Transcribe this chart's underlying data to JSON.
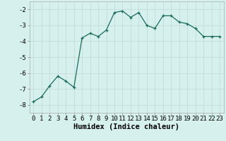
{
  "x": [
    0,
    1,
    2,
    3,
    4,
    5,
    6,
    7,
    8,
    9,
    10,
    11,
    12,
    13,
    14,
    15,
    16,
    17,
    18,
    19,
    20,
    21,
    22,
    23
  ],
  "y": [
    -7.8,
    -7.5,
    -6.8,
    -6.2,
    -6.5,
    -6.9,
    -3.8,
    -3.5,
    -3.7,
    -3.3,
    -2.2,
    -2.1,
    -2.5,
    -2.2,
    -3.0,
    -3.2,
    -2.4,
    -2.4,
    -2.8,
    -2.9,
    -3.2,
    -3.7,
    -3.7,
    -3.7
  ],
  "line_color": "#1a6b5a",
  "marker": "+",
  "markersize": 3.5,
  "linewidth": 0.9,
  "bg_color": "#d6f0ee",
  "grid_color": "#c0d8d5",
  "xlabel": "Humidex (Indice chaleur)",
  "xlim": [
    -0.5,
    23.5
  ],
  "ylim": [
    -8.5,
    -1.5
  ],
  "yticks": [
    -8,
    -7,
    -6,
    -5,
    -4,
    -3,
    -2
  ],
  "xticks": [
    0,
    1,
    2,
    3,
    4,
    5,
    6,
    7,
    8,
    9,
    10,
    11,
    12,
    13,
    14,
    15,
    16,
    17,
    18,
    19,
    20,
    21,
    22,
    23
  ],
  "tick_fontsize": 6.5,
  "xlabel_fontsize": 7.5
}
